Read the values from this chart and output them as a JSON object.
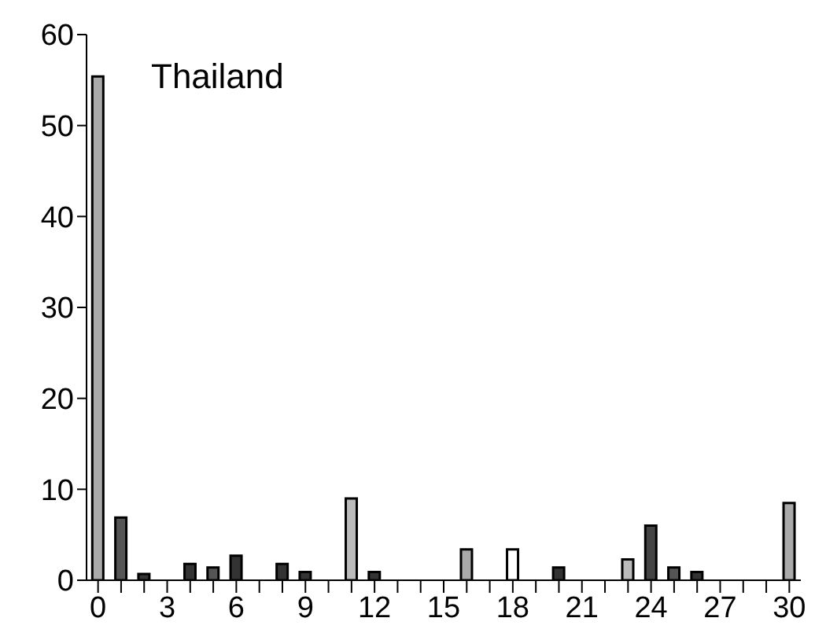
{
  "chart_data": {
    "type": "bar",
    "title": "Thailand",
    "categories": [
      "0",
      null,
      null,
      "3",
      null,
      null,
      "6",
      null,
      null,
      "9",
      null,
      null,
      "12",
      null,
      null,
      "15",
      null,
      null,
      "18",
      null,
      null,
      "21",
      null,
      null,
      "24",
      null,
      null,
      "27",
      null,
      null,
      "30"
    ],
    "values": [
      55.4,
      6.9,
      0.7,
      0,
      1.8,
      1.4,
      2.7,
      0,
      1.8,
      0.9,
      0,
      9,
      0.9,
      0,
      0,
      0,
      3.4,
      0,
      3.4,
      0,
      1.4,
      0,
      0,
      2.3,
      6,
      1.4,
      0.9,
      0,
      0,
      0,
      8.5
    ],
    "colors": [
      "#aaaaaa",
      "#555555",
      "#333333",
      "#333333",
      "#333333",
      "#555555",
      "#333333",
      "#333333",
      "#333333",
      "#333333",
      "#333333",
      "#bbbbbb",
      "#333333",
      "#333333",
      "#333333",
      "#333333",
      "#aaaaaa",
      "#333333",
      "#ffffff",
      "#333333",
      "#333333",
      "#333333",
      "#333333",
      "#bbbbbb",
      "#444444",
      "#555555",
      "#333333",
      "#333333",
      "#333333",
      "#333333",
      "#aaaaaa"
    ],
    "ylim": [
      0,
      60
    ],
    "yticks": [
      0,
      10,
      20,
      30,
      40,
      50,
      60
    ]
  }
}
